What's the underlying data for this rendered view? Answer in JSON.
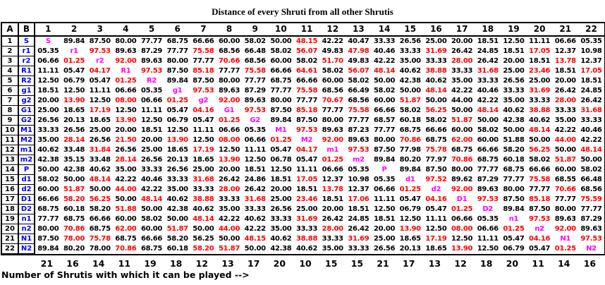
{
  "title": "Distance of every Shruti from all other Shrutis",
  "colors": {
    "red": "#ff0000",
    "magenta": "#ff00ff",
    "blue": "#0000ff",
    "black": "#000000"
  },
  "table": {
    "corner_a": "A",
    "corner_b": "B",
    "column_headers": [
      "1",
      "2",
      "3",
      "4",
      "5",
      "6",
      "7",
      "8",
      "9",
      "10",
      "11",
      "12",
      "13",
      "14",
      "15",
      "16",
      "17",
      "18",
      "19",
      "20",
      "21",
      "22"
    ],
    "rows": [
      {
        "num": "1",
        "label": "S",
        "cells": [
          "m:S",
          "89.84",
          "87.50",
          "80.00",
          "77.77",
          "68.75",
          "66.66",
          "60.00",
          "58.02",
          "50.00",
          "r:48.15",
          "42.22",
          "40.47",
          "33.33",
          "26.56",
          "25.00",
          "20.00",
          "18.51",
          "12.50",
          "11.11",
          "06.66",
          "05.35"
        ]
      },
      {
        "num": "2",
        "label": "r1",
        "cells": [
          "05.35",
          "m:r1",
          "r:97.53",
          "89.63",
          "87.29",
          "77.77",
          "r:75.58",
          "68.56",
          "66.48",
          "58.02",
          "r:56.07",
          "49.83",
          "r:47.98",
          "40.46",
          "33.33",
          "r:31.69",
          "26.42",
          "24.85",
          "18.51",
          "r:17.05",
          "12.37",
          "10.98"
        ]
      },
      {
        "num": "3",
        "label": "r2",
        "cells": [
          "06.66",
          "r:01.25",
          "m:r2",
          "r:92.00",
          "89.63",
          "80.00",
          "77.77",
          "r:70.66",
          "68.56",
          "60.00",
          "58.02",
          "r:51.70",
          "49.83",
          "42.22",
          "35.00",
          "33.33",
          "r:28.00",
          "26.42",
          "20.00",
          "18.51",
          "r:13.78",
          "12.37"
        ]
      },
      {
        "num": "4",
        "label": "R1",
        "cells": [
          "11.11",
          "05.47",
          "r:04.17",
          "m:R1",
          "r:97.53",
          "87.50",
          "r:85.18",
          "77.77",
          "r:75.58",
          "66.66",
          "r:64.61",
          "58.02",
          "r:56.07",
          "r:48.14",
          "40.62",
          "r:38.88",
          "33.33",
          "r:31.68",
          "25.00",
          "r:23.46",
          "18.51",
          "r:17.05"
        ]
      },
      {
        "num": "5",
        "label": "R2",
        "cells": [
          "12.50",
          "06.79",
          "05.47",
          "r:01.25",
          "m:R2",
          "89.84",
          "87.50",
          "80.00",
          "77.77",
          "68.75",
          "66.66",
          "60.00",
          "58.02",
          "50.00",
          "42.38",
          "40.62",
          "35.00",
          "33.33",
          "26.56",
          "25.00",
          "20.00",
          "18.51"
        ]
      },
      {
        "num": "6",
        "label": "g1",
        "cells": [
          "18.51",
          "12.50",
          "11.11",
          "06.66",
          "05.35",
          "m:g1",
          "r:97.53",
          "89.63",
          "87.29",
          "77.77",
          "r:75.58",
          "68.56",
          "66.49",
          "58.02",
          "50.00",
          "r:48.14",
          "42.22",
          "40.46",
          "33.33",
          "r:31.69",
          "26.42",
          "24.85"
        ]
      },
      {
        "num": "7",
        "label": "g2",
        "cells": [
          "20.00",
          "r:13.90",
          "12.50",
          "r:08.00",
          "06.66",
          "r:01.25",
          "m:g2",
          "r:92.00",
          "89.63",
          "80.00",
          "77.77",
          "r:70.67",
          "68.56",
          "60.00",
          "r:51.87",
          "50.00",
          "44.00",
          "42.22",
          "35.00",
          "33.33",
          "r:28.00",
          "26.42"
        ]
      },
      {
        "num": "8",
        "label": "G1",
        "cells": [
          "25.00",
          "18.65",
          "r:17.19",
          "12.50",
          "11.11",
          "05.47",
          "r:04.16",
          "m:G1",
          "r:97.53",
          "87.50",
          "r:85.18",
          "77.77",
          "r:75.58",
          "66.66",
          "58.02",
          "r:56.25",
          "50.00",
          "r:48.14",
          "40.62",
          "r:38.88",
          "33.33",
          "r:31.68"
        ]
      },
      {
        "num": "9",
        "label": "G2",
        "cells": [
          "26.56",
          "20.13",
          "18.65",
          "r:13.90",
          "12.50",
          "06.79",
          "05.47",
          "r:01.25",
          "m:G2",
          "89.84",
          "87.50",
          "80.00",
          "77.77",
          "68.57",
          "60.18",
          "58.02",
          "r:51.87",
          "50.00",
          "42.38",
          "40.62",
          "35.00",
          "33.33"
        ]
      },
      {
        "num": "10",
        "label": "M1",
        "cells": [
          "33.33",
          "26.56",
          "25.00",
          "20.00",
          "18.51",
          "12.50",
          "11.11",
          "06.66",
          "05.35",
          "m:M1",
          "r:97.53",
          "89.63",
          "87.23",
          "77.77",
          "68.75",
          "66.66",
          "60.00",
          "58.02",
          "50.00",
          "r:48.14",
          "42.22",
          "40.46"
        ]
      },
      {
        "num": "11",
        "label": "M2",
        "cells": [
          "35.00",
          "r:28.14",
          "26.56",
          "r:21.50",
          "20.00",
          "r:13.90",
          "12.50",
          "r:08.00",
          "06.66",
          "r:01.25",
          "m:M2",
          "r:92.00",
          "89.63",
          "80.00",
          "r:70.86",
          "68.75",
          "r:62.00",
          "60.00",
          "51.88",
          "50.00",
          "r:44.00",
          "42.22"
        ]
      },
      {
        "num": "12",
        "label": "m1",
        "cells": [
          "40.62",
          "33.48",
          "r:31.84",
          "26.56",
          "25.00",
          "18.65",
          "r:17.19",
          "12.50",
          "11.11",
          "05.47",
          "r:04.17",
          "m:m1",
          "r:97.53",
          "87.50",
          "77.98",
          "r:75.78",
          "68.75",
          "66.66",
          "58.20",
          "r:56.25",
          "50.00",
          "r:48.14"
        ]
      },
      {
        "num": "13",
        "label": "m2",
        "cells": [
          "42.38",
          "35.15",
          "33.48",
          "r:28.14",
          "26.56",
          "20.13",
          "18.65",
          "r:13.90",
          "12.50",
          "06.78",
          "05.47",
          "r:01.25",
          "m:m2",
          "89.84",
          "80.20",
          "77.97",
          "r:70.86",
          "68.75",
          "60.18",
          "58.02",
          "r:51.87",
          "50.00"
        ]
      },
      {
        "num": "14",
        "label": "P",
        "cells": [
          "50.00",
          "42.38",
          "40.62",
          "35.00",
          "33.33",
          "26.56",
          "25.00",
          "20.00",
          "18.51",
          "12.50",
          "11.11",
          "06.66",
          "05.35",
          "m:P",
          "89.84",
          "87.50",
          "80.00",
          "77.77",
          "68.75",
          "66.66",
          "60.00",
          "58.02"
        ]
      },
      {
        "num": "15",
        "label": "d1",
        "cells": [
          "58.02",
          "50.00",
          "r:48.14",
          "42.22",
          "40.46",
          "33.33",
          "r:31.68",
          "26.42",
          "24.86",
          "18.51",
          "r:17.05",
          "12.37",
          "10.98",
          "05.35",
          "m:d1",
          "r:97.52",
          "89.62",
          "87.29",
          "77.77",
          "r:75.58",
          "68.55",
          "66.48"
        ]
      },
      {
        "num": "16",
        "label": "d2",
        "cells": [
          "60.00",
          "r:51.87",
          "50.00",
          "r:44.00",
          "42.22",
          "35.00",
          "33.33",
          "r:28.00",
          "26.42",
          "20.00",
          "18.51",
          "r:13.78",
          "12.37",
          "06.66",
          "r:01.25",
          "m:d2",
          "r:92.00",
          "89.63",
          "80.00",
          "77.77",
          "r:70.66",
          "68.56"
        ]
      },
      {
        "num": "17",
        "label": "D1",
        "cells": [
          "66.66",
          "r:58.20",
          "r:56.25",
          "50.00",
          "r:48.14",
          "40.62",
          "r:38.88",
          "33.33",
          "r:31.68",
          "25.00",
          "r:23.46",
          "18.51",
          "r:17.06",
          "11.11",
          "05.47",
          "r:04.16",
          "m:D1",
          "r:97.53",
          "87.50",
          "r:85.18",
          "77.77",
          "r:75.59"
        ]
      },
      {
        "num": "18",
        "label": "D2",
        "cells": [
          "68.75",
          "60.18",
          "58.20",
          "r:51.88",
          "50.00",
          "42.38",
          "40.62",
          "35.00",
          "33.33",
          "26.56",
          "25.00",
          "20.00",
          "18.51",
          "12.50",
          "06.79",
          "05.47",
          "r:01.25",
          "m:D2",
          "89.84",
          "87.50",
          "80.00",
          "77.77"
        ]
      },
      {
        "num": "19",
        "label": "n1",
        "cells": [
          "77.77",
          "68.75",
          "66.66",
          "60.00",
          "58.02",
          "50.00",
          "r:48.14",
          "42.22",
          "40.62",
          "33.33",
          "r:31.69",
          "26.42",
          "24.85",
          "18.51",
          "12.50",
          "11.11",
          "06.66",
          "05.35",
          "m:n1",
          "r:97.53",
          "89.63",
          "87.29"
        ]
      },
      {
        "num": "20",
        "label": "n2",
        "cells": [
          "80.00",
          "r:70.86",
          "68.75",
          "r:62.00",
          "60.00",
          "r:51.87",
          "50.00",
          "r:44.00",
          "42.22",
          "35.00",
          "33.33",
          "r:28.00",
          "26.42",
          "20.00",
          "r:13.90",
          "12.50",
          "r:08.00",
          "06.66",
          "r:01.25",
          "m:n2",
          "r:92.00",
          "89.63"
        ]
      },
      {
        "num": "21",
        "label": "N1",
        "cells": [
          "87.50",
          "r:78.00",
          "r:75.78",
          "68.75",
          "66.66",
          "58.20",
          "56.25",
          "50.00",
          "r:48.15",
          "40.62",
          "r:38.88",
          "33.33",
          "r:31.69",
          "25.00",
          "18.65",
          "r:17.19",
          "12.50",
          "11.11",
          "05.47",
          "r:04.16",
          "m:N1",
          "r:97.53"
        ]
      },
      {
        "num": "22",
        "label": "N2",
        "cells": [
          "89.84",
          "80.20",
          "78.00",
          "r:70.86",
          "68.75",
          "60.18",
          "r:58.20",
          "r:51.87",
          "50.00",
          "42.38",
          "40.62",
          "35.00",
          "33.33",
          "26.56",
          "20.13",
          "18.65",
          "r:13.90",
          "12.50",
          "06.79",
          "05.47",
          "r:01.25",
          "m:N2"
        ]
      }
    ]
  },
  "footer": {
    "counts": [
      "21",
      "16",
      "14",
      "11",
      "19",
      "18",
      "12",
      "13",
      "17",
      "20",
      "10",
      "15",
      "15",
      "21",
      "17",
      "13",
      "12",
      "18",
      "20",
      "11",
      "14",
      "16"
    ],
    "label": "Number of Shrutis with which it can be played -->"
  }
}
